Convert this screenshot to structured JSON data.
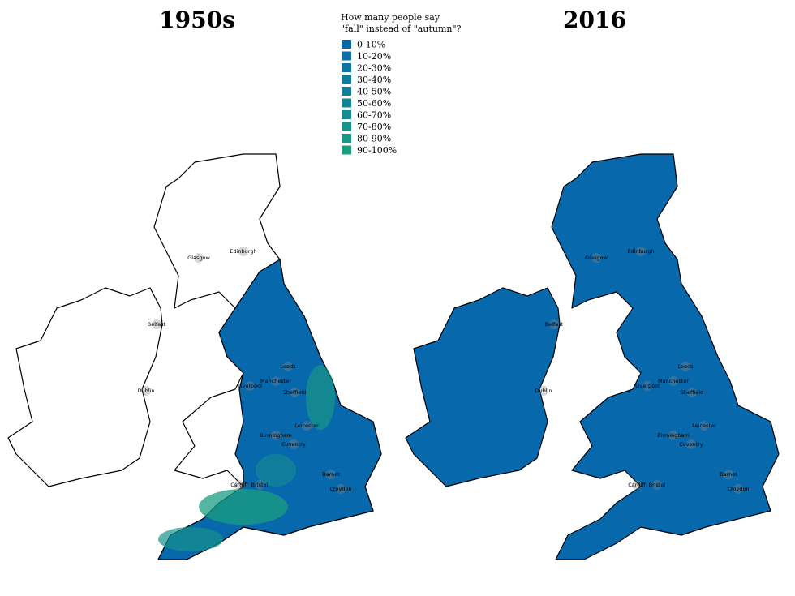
{
  "maps": {
    "left_title": "1950s",
    "right_title": "2016",
    "legend": {
      "title": [
        "How many people say",
        "\"fall\" instead of \"autumn\"?"
      ],
      "entries": [
        {
          "name": "0-10%",
          "color": "#0868ac"
        },
        {
          "name": "10-20%",
          "color": "#0a6ea8"
        },
        {
          "name": "20-30%",
          "color": "#0c74a4"
        },
        {
          "name": "30-40%",
          "color": "#0e7a9f"
        },
        {
          "name": "40-50%",
          "color": "#10809a"
        },
        {
          "name": "50-60%",
          "color": "#128695"
        },
        {
          "name": "60-70%",
          "color": "#148c90"
        },
        {
          "name": "70-80%",
          "color": "#16928b"
        },
        {
          "name": "80-90%",
          "color": "#189886"
        },
        {
          "name": "90-100%",
          "color": "#1a9e80"
        }
      ]
    },
    "cities": [
      "Glasgow",
      "Edinburgh",
      "Belfast",
      "Dublin",
      "Leeds",
      "Manchester",
      "Liverpool",
      "Sheffield",
      "Leicester",
      "Birmingham",
      "Coventry",
      "Barnet",
      "Cardiff",
      "Bristol",
      "Croydon"
    ]
  }
}
